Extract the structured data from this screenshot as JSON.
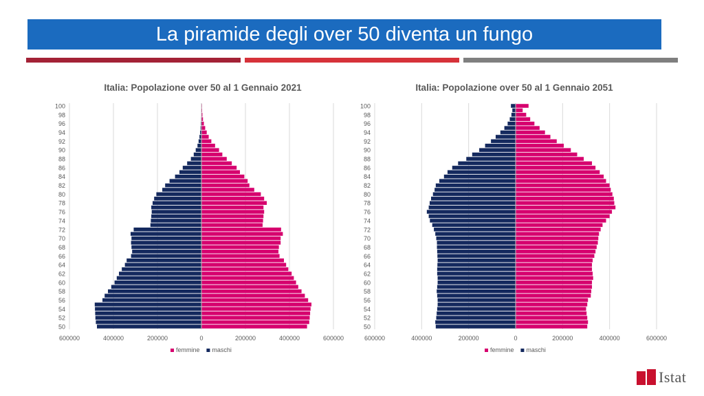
{
  "header": {
    "title": "La piramide degli over 50 diventa un fungo"
  },
  "colors": {
    "banner": "#1b6bbf",
    "rule_left": "#a32236",
    "rule_mid": "#d6323a",
    "rule_right": "#7f7f7f",
    "femmine": "#d6006e",
    "maschi": "#14295e"
  },
  "logo": {
    "text": "Istat",
    "icon": "istat-logo-icon"
  },
  "chart_data": [
    {
      "type": "bar",
      "orientation": "horizontal-pyramid",
      "title": "Italia: Popolazione over 50 al 1 Gennaio 2021",
      "age_ticks": [
        "100",
        "98",
        "96",
        "94",
        "92",
        "90",
        "88",
        "86",
        "84",
        "82",
        "80",
        "78",
        "76",
        "74",
        "72",
        "70",
        "68",
        "66",
        "64",
        "62",
        "60",
        "58",
        "56",
        "54",
        "52",
        "50"
      ],
      "x_ticks": [
        "600000",
        "400000",
        "200000",
        "0",
        "200000",
        "400000",
        "600000"
      ],
      "xlim": [
        -600000,
        600000
      ],
      "ages_from": 50,
      "ages_to": 100,
      "legend": [
        "femmine",
        "maschi"
      ],
      "legend_position": "bottom",
      "grid": true,
      "series": [
        {
          "name": "maschi",
          "values": [
            475000,
            480000,
            482000,
            483000,
            484000,
            485000,
            450000,
            440000,
            425000,
            410000,
            395000,
            385000,
            375000,
            362000,
            348000,
            340000,
            320000,
            315000,
            318000,
            320000,
            318000,
            322000,
            308000,
            232000,
            230000,
            228000,
            226000,
            228000,
            222000,
            215000,
            205000,
            178000,
            165000,
            145000,
            120000,
            100000,
            85000,
            65000,
            48000,
            35000,
            26000,
            18000,
            13000,
            9000,
            6000,
            4000,
            3000,
            2000,
            1500,
            1000,
            700
          ]
        },
        {
          "name": "femmine",
          "values": [
            480000,
            490000,
            492000,
            494000,
            496000,
            500000,
            485000,
            470000,
            455000,
            440000,
            430000,
            420000,
            410000,
            395000,
            385000,
            375000,
            355000,
            350000,
            352000,
            360000,
            360000,
            370000,
            362000,
            278000,
            280000,
            282000,
            285000,
            282000,
            297000,
            285000,
            270000,
            240000,
            218000,
            210000,
            195000,
            175000,
            160000,
            138000,
            115000,
            95000,
            80000,
            62000,
            45000,
            33000,
            24000,
            17000,
            11000,
            7000,
            4500,
            3000,
            2500
          ]
        }
      ]
    },
    {
      "type": "bar",
      "orientation": "horizontal-pyramid",
      "title": "Italia: Popolazione over 50 al 1 Gennaio 2051",
      "age_ticks": [
        "100",
        "98",
        "96",
        "94",
        "92",
        "90",
        "88",
        "86",
        "84",
        "82",
        "80",
        "78",
        "76",
        "74",
        "72",
        "70",
        "68",
        "66",
        "64",
        "62",
        "60",
        "58",
        "56",
        "54",
        "52",
        "50"
      ],
      "x_ticks": [
        "600000",
        "400000",
        "200000",
        "0",
        "200000",
        "400000",
        "600000"
      ],
      "xlim": [
        -600000,
        600000
      ],
      "ages_from": 50,
      "ages_to": 100,
      "legend": [
        "femmine",
        "maschi"
      ],
      "legend_position": "bottom",
      "grid": true,
      "series": [
        {
          "name": "maschi",
          "values": [
            340000,
            342000,
            338000,
            336000,
            334000,
            332000,
            332000,
            334000,
            336000,
            334000,
            332000,
            332000,
            334000,
            334000,
            333000,
            332000,
            333000,
            334000,
            335000,
            335000,
            338000,
            342000,
            348000,
            355000,
            365000,
            370000,
            378000,
            370000,
            366000,
            360000,
            352000,
            345000,
            340000,
            325000,
            305000,
            290000,
            270000,
            245000,
            210000,
            185000,
            155000,
            130000,
            105000,
            85000,
            65000,
            48000,
            34000,
            25000,
            18000,
            14000,
            20000
          ]
        },
        {
          "name": "femmine",
          "values": [
            305000,
            308000,
            305000,
            302000,
            300000,
            305000,
            308000,
            320000,
            322000,
            325000,
            325000,
            330000,
            328000,
            325000,
            325000,
            328000,
            335000,
            340000,
            345000,
            350000,
            352000,
            355000,
            362000,
            370000,
            385000,
            400000,
            410000,
            425000,
            420000,
            418000,
            412000,
            405000,
            400000,
            385000,
            375000,
            358000,
            340000,
            325000,
            290000,
            262000,
            235000,
            205000,
            175000,
            148000,
            125000,
            102000,
            80000,
            62000,
            45000,
            30000,
            55000
          ]
        }
      ]
    }
  ]
}
